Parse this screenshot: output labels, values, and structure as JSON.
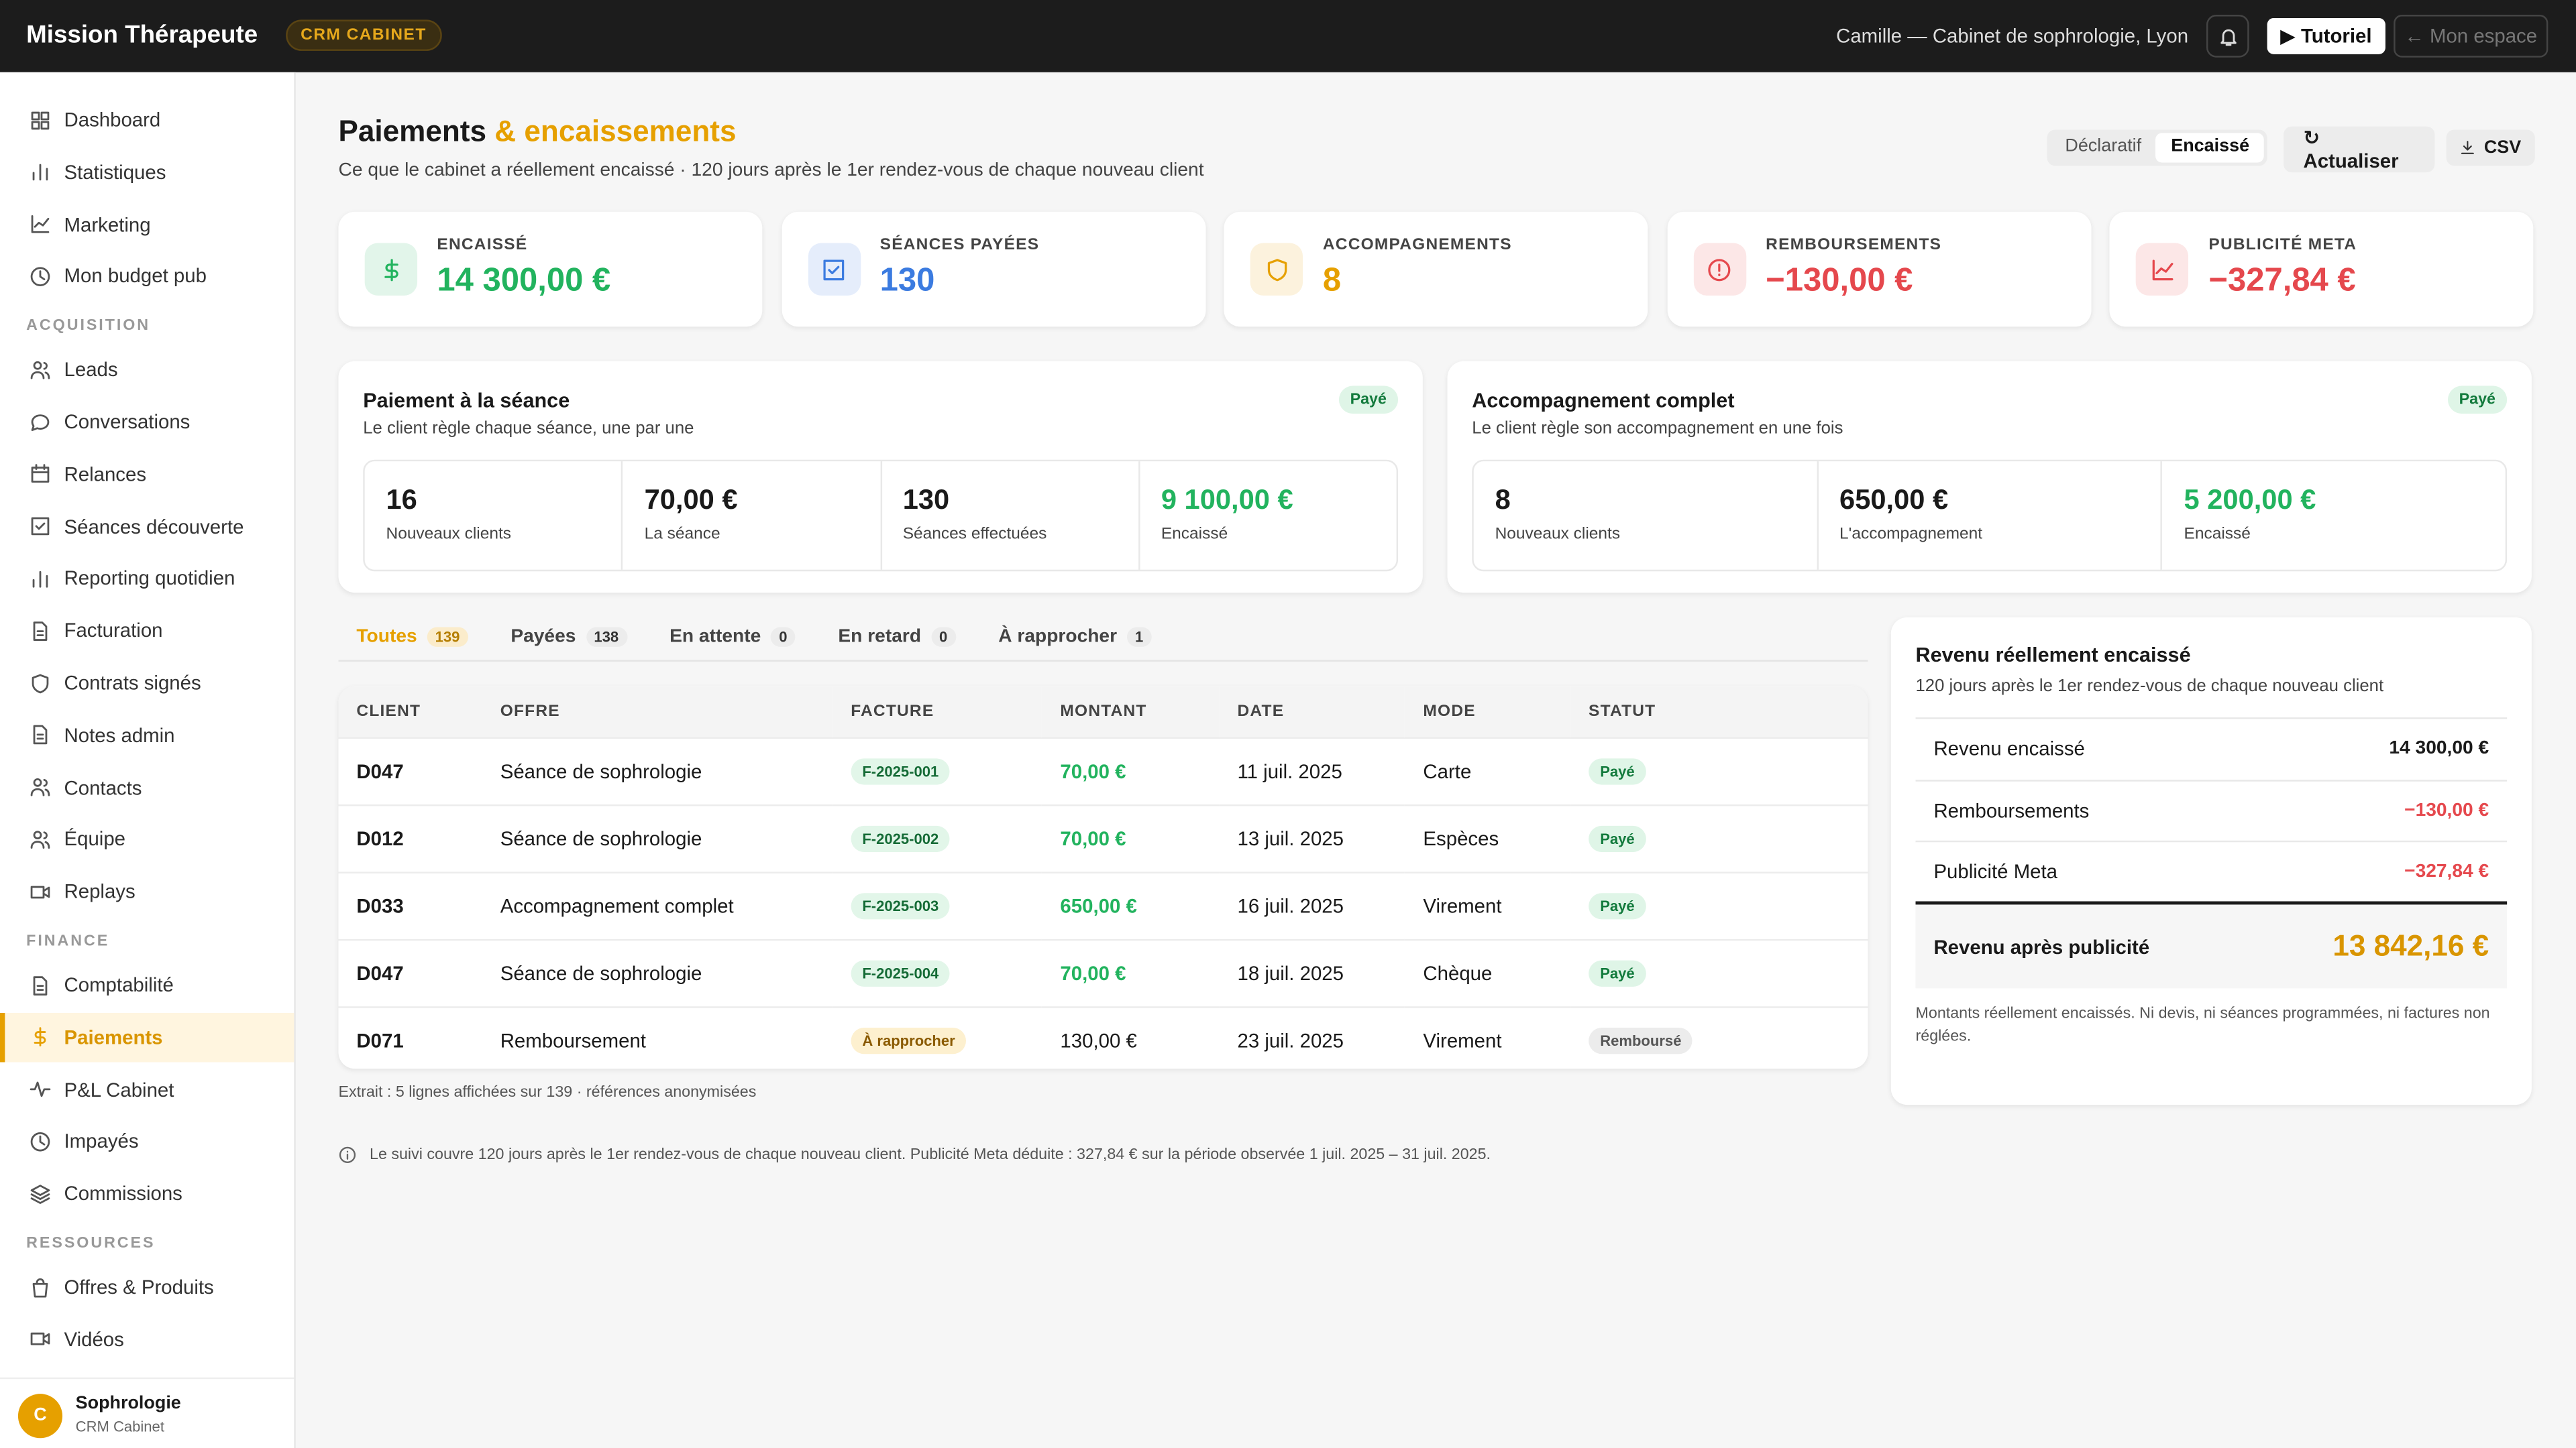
{
  "topbar": {
    "brand": "Mission Thérapeute",
    "badge": "CRM CABINET",
    "user": "Camille — Cabinet de sophrologie, Lyon",
    "tutorial": "▶ Tutoriel",
    "back": "← Mon espace"
  },
  "sidebar": {
    "groups": [
      {
        "items": [
          {
            "label": "Dashboard"
          },
          {
            "label": "Statistiques"
          },
          {
            "label": "Marketing"
          },
          {
            "label": "Mon budget pub"
          }
        ]
      },
      {
        "title": "ACQUISITION",
        "items": [
          {
            "label": "Leads"
          },
          {
            "label": "Conversations"
          },
          {
            "label": "Relances"
          },
          {
            "label": "Séances découverte"
          },
          {
            "label": "Reporting quotidien"
          },
          {
            "label": "Facturation"
          },
          {
            "label": "Contrats signés"
          },
          {
            "label": "Notes admin"
          },
          {
            "label": "Contacts"
          },
          {
            "label": "Équipe"
          },
          {
            "label": "Replays"
          }
        ]
      },
      {
        "title": "FINANCE",
        "items": [
          {
            "label": "Comptabilité"
          },
          {
            "label": "Paiements",
            "active": true
          },
          {
            "label": "P&L Cabinet"
          },
          {
            "label": "Impayés"
          },
          {
            "label": "Commissions"
          }
        ]
      },
      {
        "title": "RESSOURCES",
        "items": [
          {
            "label": "Offres & Produits"
          },
          {
            "label": "Vidéos"
          }
        ]
      }
    ],
    "footer": {
      "avatar": "C",
      "name": "Sophrologie",
      "sub": "CRM Cabinet"
    }
  },
  "header": {
    "title": "Paiements",
    "title_accent": "& encaissements",
    "subtitle": "Ce que le cabinet a réellement encaissé · 120 jours après le 1er rendez-vous de chaque nouveau client",
    "toggle": [
      "Déclaratif",
      "Encaissé"
    ],
    "toggle_active": 1,
    "refresh": "↻ Actualiser",
    "csv": "CSV"
  },
  "kpis": [
    {
      "label": "ENCAISSÉ",
      "value": "14 300,00 €",
      "color": "#22b35e"
    },
    {
      "label": "SÉANCES PAYÉES",
      "value": "130",
      "color": "#3b7be0"
    },
    {
      "label": "ACCOMPAGNEMENTS",
      "value": "8",
      "color": "#e6a000"
    },
    {
      "label": "REMBOURSEMENTS",
      "value": "−130,00 €",
      "color": "#e5484d"
    },
    {
      "label": "PUBLICITÉ META",
      "value": "−327,84 €",
      "color": "#e5484d"
    }
  ],
  "panels": [
    {
      "title": "Paiement à la séance",
      "badge": "Payé",
      "subtitle": "Le client règle chaque séance, une par une",
      "stats": [
        {
          "value": "16",
          "label": "Nouveaux clients"
        },
        {
          "value": "70,00 €",
          "label": "La séance"
        },
        {
          "value": "130",
          "label": "Séances effectuées"
        },
        {
          "value": "9 100,00 €",
          "label": "Encaissé",
          "color": "#22b35e"
        }
      ]
    },
    {
      "title": "Accompagnement complet",
      "badge": "Payé",
      "subtitle": "Le client règle son accompagnement en une fois",
      "stats": [
        {
          "value": "8",
          "label": "Nouveaux clients"
        },
        {
          "value": "650,00 €",
          "label": "L'accompagnement"
        },
        {
          "value": "5 200,00 €",
          "label": "Encaissé",
          "color": "#22b35e"
        }
      ]
    }
  ],
  "tabs": [
    {
      "label": "Toutes",
      "count": "139",
      "active": true
    },
    {
      "label": "Payées",
      "count": "138"
    },
    {
      "label": "En attente",
      "count": "0"
    },
    {
      "label": "En retard",
      "count": "0"
    },
    {
      "label": "À rapprocher",
      "count": "1"
    }
  ],
  "table": {
    "columns": [
      "CLIENT",
      "OFFRE",
      "FACTURE",
      "MONTANT",
      "DATE",
      "MODE",
      "STATUT"
    ],
    "rows": [
      {
        "cells": [
          "D047",
          "Séance de sophrologie",
          "F-2025-001",
          "70,00 €",
          "11 juil. 2025",
          "Carte",
          "Payé"
        ],
        "tone": "paid"
      },
      {
        "cells": [
          "D012",
          "Séance de sophrologie",
          "F-2025-002",
          "70,00 €",
          "13 juil. 2025",
          "Espèces",
          "Payé"
        ],
        "tone": "paid"
      },
      {
        "cells": [
          "D033",
          "Accompagnement complet",
          "F-2025-003",
          "650,00 €",
          "16 juil. 2025",
          "Virement",
          "Payé"
        ],
        "tone": "paid"
      },
      {
        "cells": [
          "D047",
          "Séance de sophrologie",
          "F-2025-004",
          "70,00 €",
          "18 juil. 2025",
          "Chèque",
          "Payé"
        ],
        "tone": "paid"
      },
      {
        "cells": [
          "D071",
          "Remboursement",
          "À rapprocher",
          "130,00 €",
          "23 juil. 2025",
          "Virement",
          "Remboursé"
        ],
        "tone": "refund"
      }
    ],
    "note": "Extrait : 5 lignes affichées sur 139 · références anonymisées"
  },
  "revenue": {
    "title": "Revenu réellement encaissé",
    "subtitle": "120 jours après le 1er rendez-vous de chaque nouveau client",
    "rows": [
      {
        "label": "Revenu encaissé",
        "value": "14 300,00 €"
      },
      {
        "label": "Remboursements",
        "value": "−130,00 €",
        "color": "#e5484d"
      },
      {
        "label": "Publicité Meta",
        "value": "−327,84 €",
        "color": "#e5484d"
      }
    ],
    "total": {
      "label": "Revenu après publicité",
      "value": "13 842,16 €"
    },
    "note": "Montants réellement encaissés. Ni devis, ni séances programmées, ni factures non réglées."
  },
  "footnote": "Le suivi couvre 120 jours après le 1er rendez-vous de chaque nouveau client. Publicité Meta déduite : 327,84 € sur la période observée 1 juil. 2025 – 31 juil. 2025."
}
